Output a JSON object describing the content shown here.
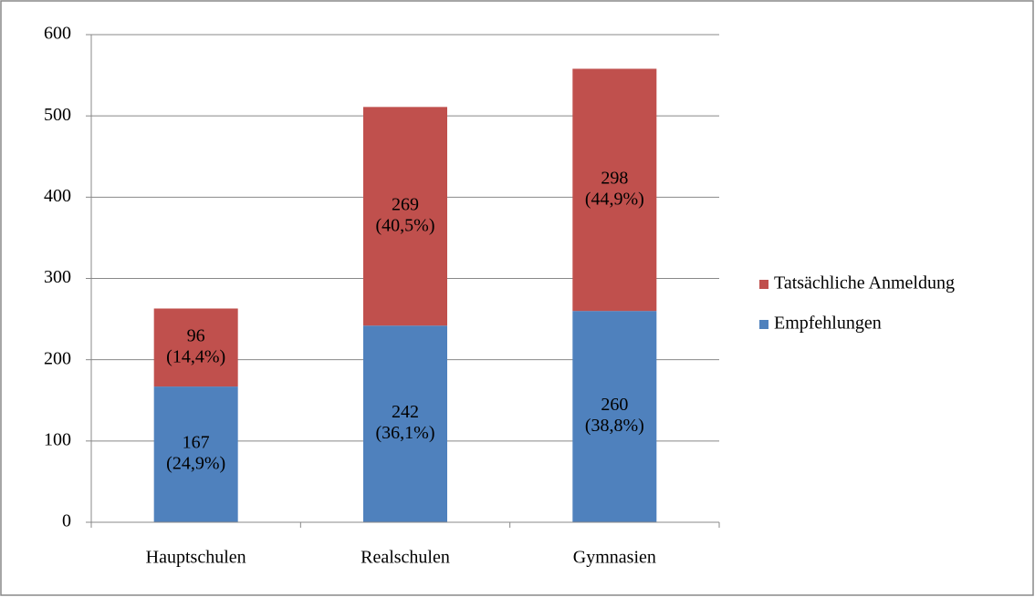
{
  "chart_data": {
    "type": "stacked_bar",
    "categories": [
      "Hauptschulen",
      "Realschulen",
      "Gymnasien"
    ],
    "series": [
      {
        "name": "Empfehlungen",
        "color": "#4f81bd",
        "values": [
          167,
          242,
          260
        ],
        "value_labels": [
          [
            "167",
            "(24,9%)"
          ],
          [
            "242",
            "(36,1%)"
          ],
          [
            "260",
            "(38,8%)"
          ]
        ]
      },
      {
        "name": "Tatsächliche Anmeldung",
        "color": "#c0504d",
        "values": [
          96,
          269,
          298
        ],
        "value_labels": [
          [
            "96",
            "(14,4%)"
          ],
          [
            "269",
            "(40,5%)"
          ],
          [
            "298",
            "(44,9%)"
          ]
        ]
      }
    ],
    "ylim": [
      0,
      600
    ],
    "yticks": [
      0,
      100,
      200,
      300,
      400,
      500,
      600
    ],
    "grid": true,
    "legend": "right"
  }
}
